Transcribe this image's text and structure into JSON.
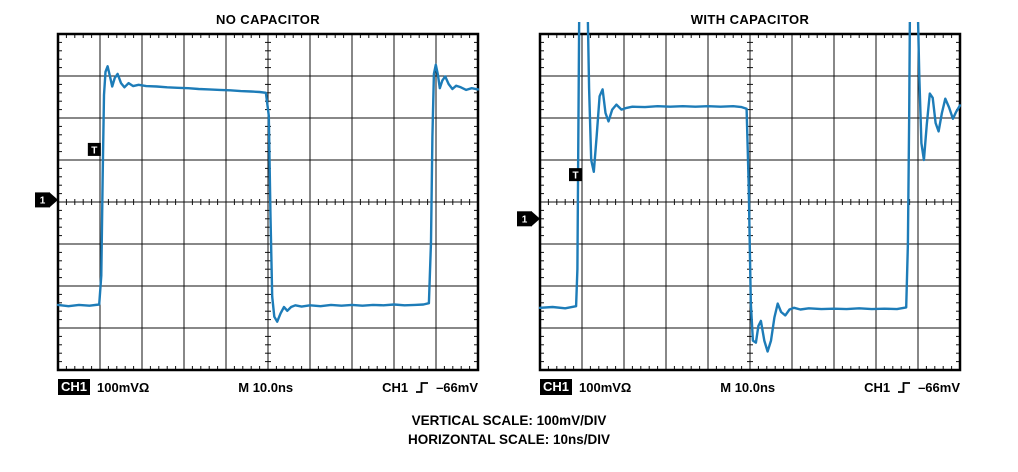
{
  "colors": {
    "trace": "#1d7cb8",
    "grid": "#111111",
    "frame": "#000000",
    "marker_bg": "#000000",
    "marker_fg": "#ffffff",
    "background": "#ffffff"
  },
  "scopes": [
    {
      "title": "NO CAPACITOR",
      "readout": {
        "ch_badge": "CH1",
        "vertical": "100mVΩ",
        "timebase": "M 10.0ns",
        "trigger_source": "CH1",
        "trigger_level": "–66mV"
      },
      "markers": {
        "trigger_label": "T",
        "trigger_x_div": 1.02,
        "trigger_y_div": 2.76,
        "channel_label": "1",
        "ref_y_div": 3.95
      }
    },
    {
      "title": "WITH CAPACITOR",
      "readout": {
        "ch_badge": "CH1",
        "vertical": "100mVΩ",
        "timebase": "M 10.0ns",
        "trigger_source": "CH1",
        "trigger_level": "–66mV"
      },
      "markers": {
        "trigger_label": "T",
        "trigger_x_div": 1.0,
        "trigger_y_div": 3.36,
        "channel_label": "1",
        "ref_y_div": 4.4
      }
    }
  ],
  "footer": {
    "line1": "VERTICAL SCALE: 100mV/DIV",
    "line2": "HORIZONTAL SCALE: 10ns/DIV"
  },
  "chart_data": [
    {
      "type": "line",
      "title": "NO CAPACITOR",
      "x_unit": "ns",
      "y_unit": "mV",
      "x_per_div": 10,
      "y_per_div": 100,
      "divisions_x": 10,
      "divisions_y": 8,
      "xlim": [
        0,
        100
      ],
      "ref_y_div_from_top": 3.95,
      "grid": true,
      "series": [
        {
          "name": "CH1",
          "points": [
            [
              0,
              -250
            ],
            [
              2.5,
              -253
            ],
            [
              5,
              -250
            ],
            [
              7.5,
              -252
            ],
            [
              9.8,
              -249
            ],
            [
              10.3,
              -180
            ],
            [
              10.65,
              60
            ],
            [
              10.95,
              250
            ],
            [
              11.3,
              305
            ],
            [
              11.8,
              318
            ],
            [
              12.35,
              295
            ],
            [
              12.9,
              270
            ],
            [
              13.5,
              290
            ],
            [
              14.2,
              300
            ],
            [
              15,
              278
            ],
            [
              15.8,
              268
            ],
            [
              16.8,
              278
            ],
            [
              17.9,
              271
            ],
            [
              19.2,
              274
            ],
            [
              21,
              271
            ],
            [
              23.5,
              270
            ],
            [
              26,
              268
            ],
            [
              28.5,
              267
            ],
            [
              31,
              266
            ],
            [
              33.5,
              264
            ],
            [
              36,
              263
            ],
            [
              38.5,
              262
            ],
            [
              41,
              261
            ],
            [
              43.5,
              259
            ],
            [
              46,
              258
            ],
            [
              48,
              257
            ],
            [
              49.5,
              255
            ],
            [
              50.2,
              200
            ],
            [
              50.6,
              -40
            ],
            [
              51,
              -230
            ],
            [
              51.5,
              -278
            ],
            [
              52.2,
              -290
            ],
            [
              53,
              -270
            ],
            [
              53.8,
              -255
            ],
            [
              54.6,
              -264
            ],
            [
              55.5,
              -255
            ],
            [
              56.5,
              -251
            ],
            [
              58,
              -254
            ],
            [
              60,
              -251
            ],
            [
              62.5,
              -253
            ],
            [
              65,
              -250
            ],
            [
              67.5,
              -252
            ],
            [
              70,
              -250
            ],
            [
              72.5,
              -252
            ],
            [
              75,
              -250
            ],
            [
              77.5,
              -251
            ],
            [
              80,
              -249
            ],
            [
              82.5,
              -251
            ],
            [
              85,
              -250
            ],
            [
              87,
              -249
            ],
            [
              88.3,
              -246
            ],
            [
              88.8,
              -100
            ],
            [
              89.15,
              150
            ],
            [
              89.5,
              300
            ],
            [
              89.95,
              322
            ],
            [
              90.45,
              298
            ],
            [
              90.9,
              266
            ],
            [
              91.5,
              284
            ],
            [
              92.2,
              294
            ],
            [
              93,
              276
            ],
            [
              93.9,
              264
            ],
            [
              94.8,
              272
            ],
            [
              95.9,
              268
            ],
            [
              97.2,
              262
            ],
            [
              98.5,
              266
            ],
            [
              100,
              263
            ]
          ]
        }
      ]
    },
    {
      "type": "line",
      "title": "WITH CAPACITOR",
      "x_unit": "ns",
      "y_unit": "mV",
      "x_per_div": 10,
      "y_per_div": 100,
      "divisions_x": 10,
      "divisions_y": 8,
      "xlim": [
        0,
        100
      ],
      "ref_y_div_from_top": 4.4,
      "grid": true,
      "series": [
        {
          "name": "CH1",
          "points": [
            [
              0,
              -212
            ],
            [
              3,
              -210
            ],
            [
              6,
              -213
            ],
            [
              8.6,
              -208
            ],
            [
              8.9,
              -120
            ],
            [
              9.1,
              150
            ],
            [
              9.35,
              520
            ],
            [
              11.3,
              520
            ],
            [
              11.7,
              310
            ],
            [
              12.2,
              140
            ],
            [
              12.8,
              112
            ],
            [
              13.5,
              198
            ],
            [
              14.2,
              292
            ],
            [
              14.9,
              308
            ],
            [
              15.6,
              252
            ],
            [
              16.3,
              232
            ],
            [
              17.2,
              260
            ],
            [
              18.2,
              272
            ],
            [
              19.4,
              260
            ],
            [
              20.6,
              264
            ],
            [
              22,
              267
            ],
            [
              25,
              266
            ],
            [
              28,
              268
            ],
            [
              31,
              267
            ],
            [
              34,
              268
            ],
            [
              37,
              267
            ],
            [
              40,
              268
            ],
            [
              43,
              267
            ],
            [
              46,
              268
            ],
            [
              48,
              266
            ],
            [
              49.2,
              262
            ],
            [
              49.7,
              80
            ],
            [
              50.2,
              -200
            ],
            [
              50.7,
              -290
            ],
            [
              51.4,
              -295
            ],
            [
              52,
              -255
            ],
            [
              52.6,
              -243
            ],
            [
              53.4,
              -290
            ],
            [
              54.2,
              -316
            ],
            [
              55,
              -290
            ],
            [
              55.8,
              -235
            ],
            [
              56.6,
              -202
            ],
            [
              57.4,
              -222
            ],
            [
              58.4,
              -230
            ],
            [
              59.4,
              -216
            ],
            [
              60.5,
              -212
            ],
            [
              62,
              -216
            ],
            [
              64,
              -213
            ],
            [
              67,
              -215
            ],
            [
              70,
              -214
            ],
            [
              73,
              -215
            ],
            [
              76,
              -213
            ],
            [
              79,
              -215
            ],
            [
              82,
              -214
            ],
            [
              85,
              -215
            ],
            [
              87.2,
              -211
            ],
            [
              87.6,
              -60
            ],
            [
              87.9,
              250
            ],
            [
              88.1,
              520
            ],
            [
              89.9,
              520
            ],
            [
              90.3,
              340
            ],
            [
              90.8,
              180
            ],
            [
              91.4,
              140
            ],
            [
              92.1,
              225
            ],
            [
              92.8,
              298
            ],
            [
              93.5,
              288
            ],
            [
              94.2,
              228
            ],
            [
              94.9,
              208
            ],
            [
              95.7,
              252
            ],
            [
              96.5,
              286
            ],
            [
              97.4,
              265
            ],
            [
              98.3,
              238
            ],
            [
              99.1,
              255
            ],
            [
              100,
              270
            ]
          ]
        }
      ]
    }
  ]
}
